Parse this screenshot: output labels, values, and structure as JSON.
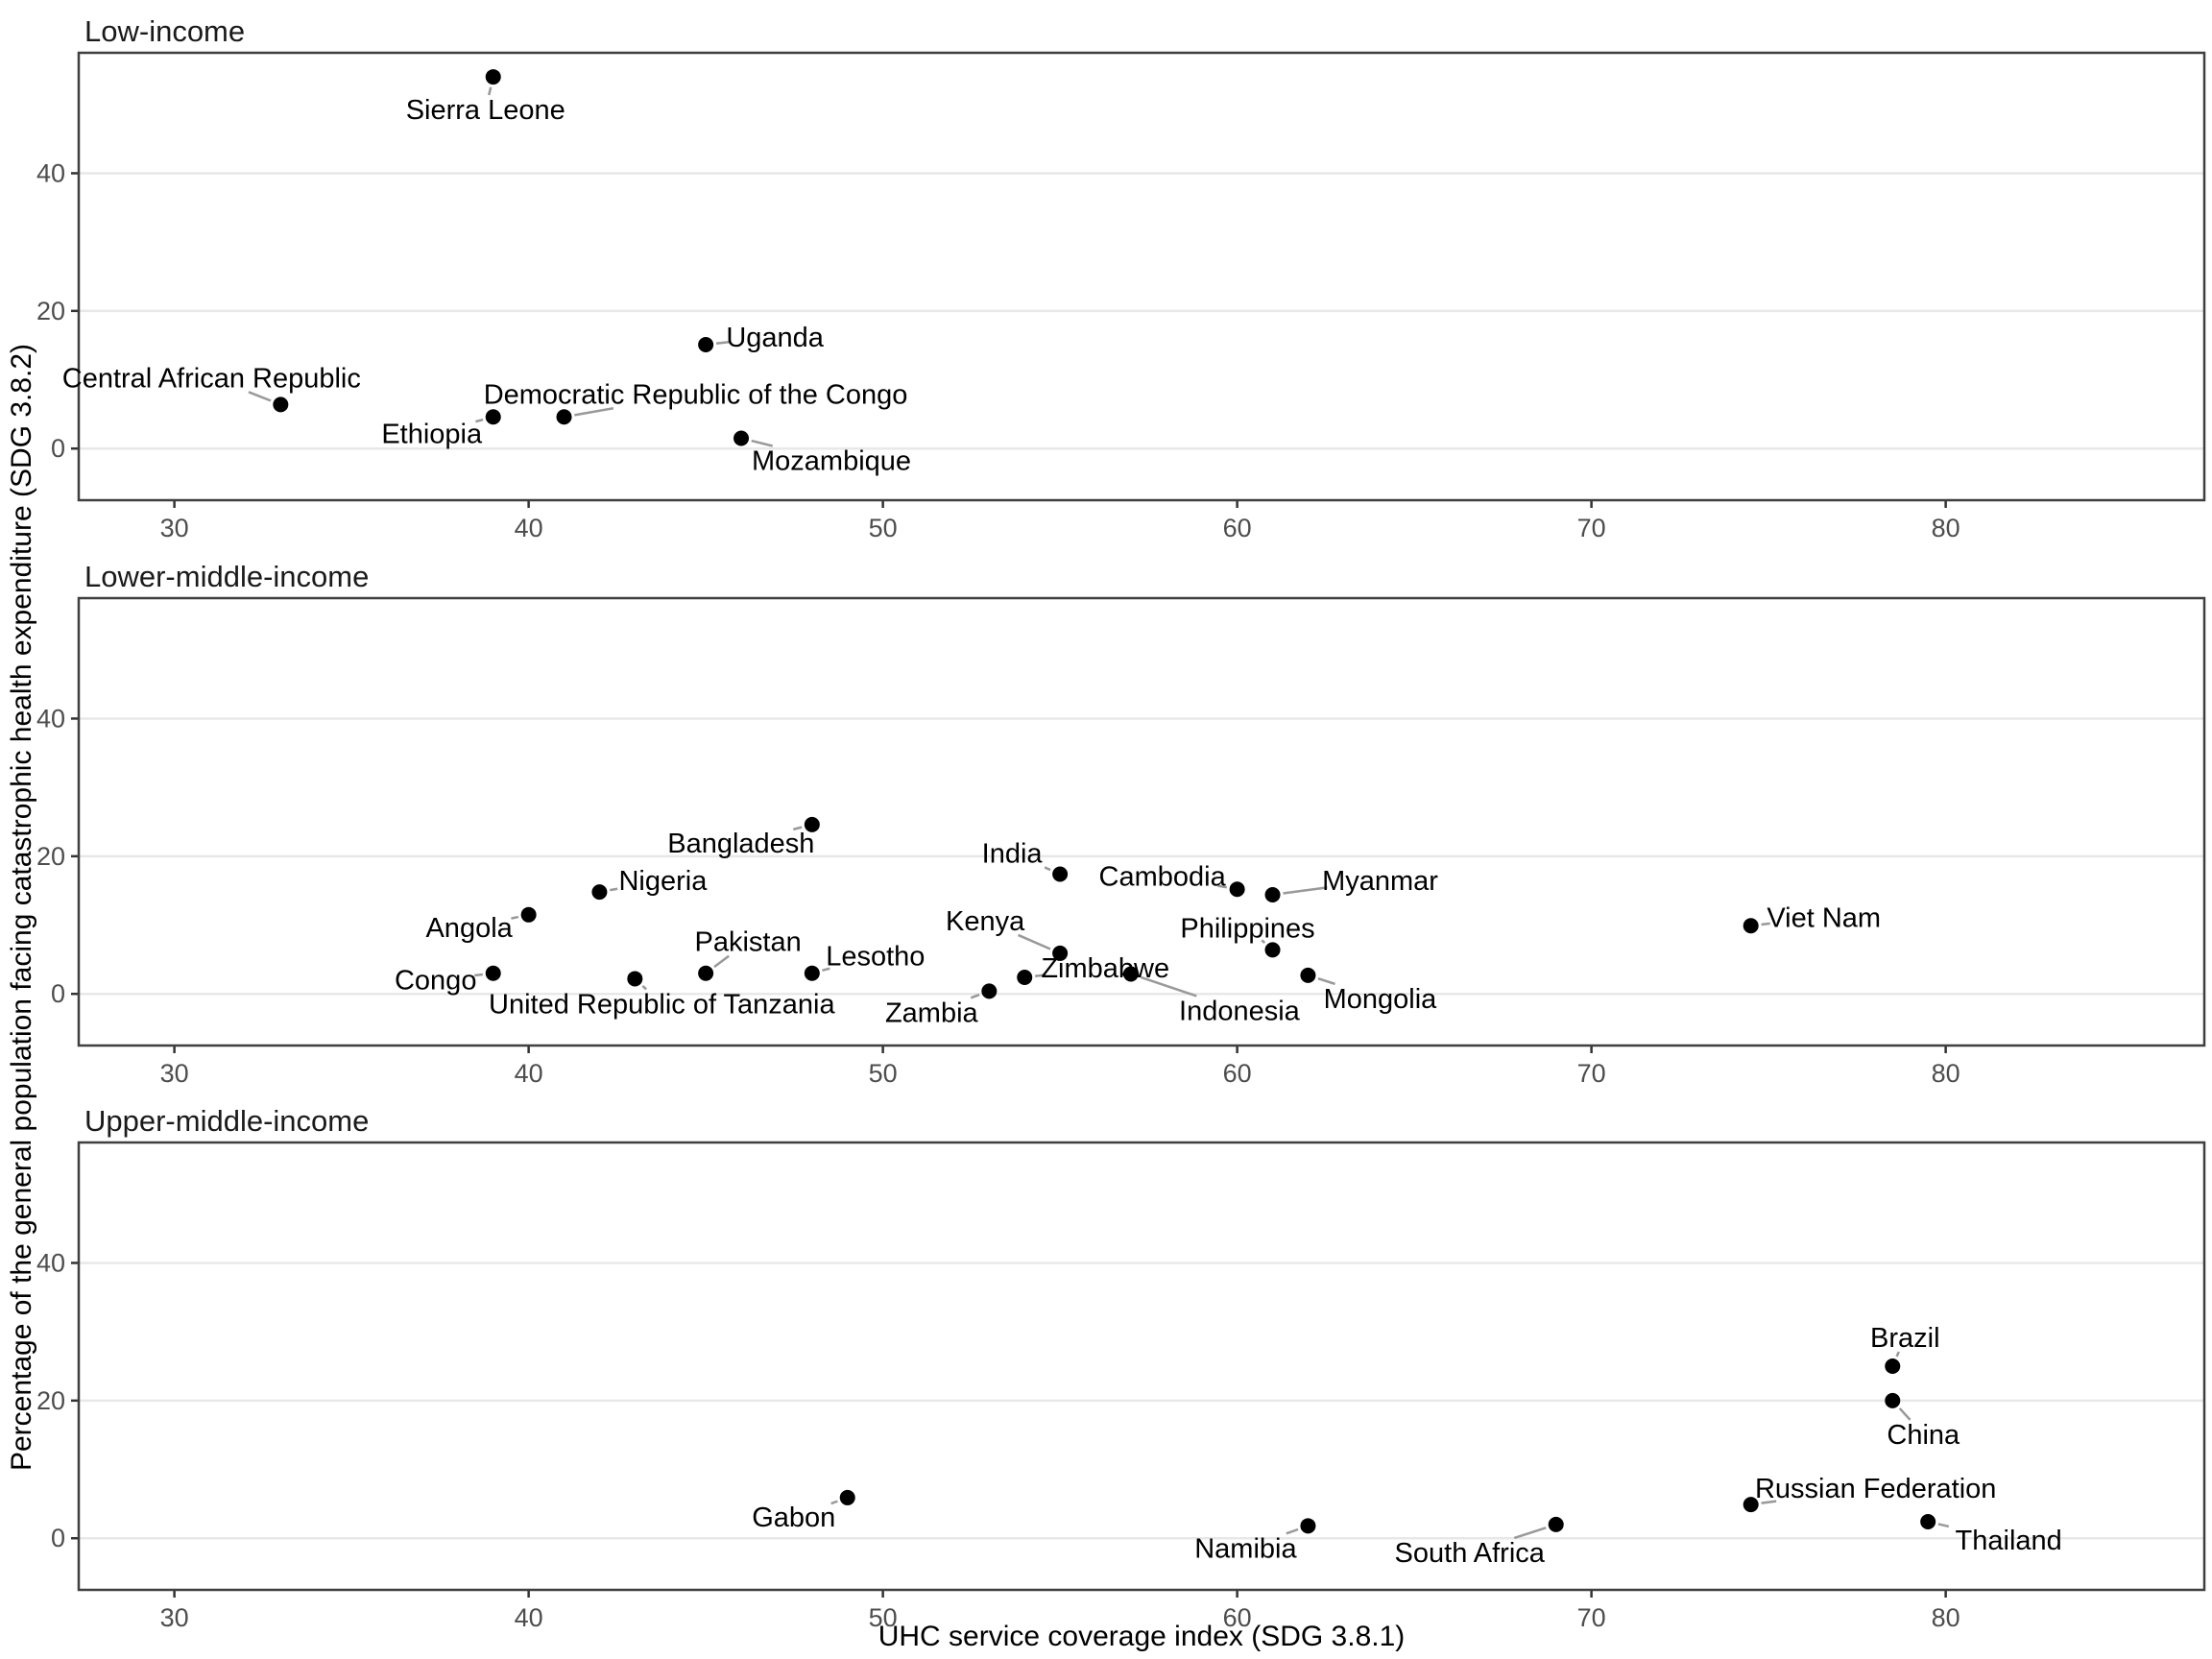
{
  "chart_data": {
    "type": "scatter",
    "title": "",
    "xlabel": "UHC service coverage index (SDG 3.8.1)",
    "ylabel": "Percentage of the general population facing catastrophic health expenditure (SDG 3.8.2)",
    "x_ticks": [
      30,
      40,
      50,
      60,
      70,
      80
    ],
    "y_ticks": [
      0,
      20,
      40
    ],
    "xlim": [
      27.3,
      87.3
    ],
    "ylim": [
      -7.5,
      57.5
    ],
    "grid": "horizontal-major-only",
    "legend": "none",
    "style": {
      "point_color": "#000000",
      "label_color": "#000000",
      "leader_color": "#999999",
      "grid_color": "#e8e8e8",
      "panel_border_color": "#3f3f3f",
      "tick_color": "#333333",
      "tick_label_color": "#4d4d4d",
      "background": "#ffffff"
    },
    "facets": [
      {
        "label": "Low-income",
        "points": [
          {
            "name": "Sierra Leone",
            "x": 39,
            "y": 54.0,
            "lx": -8,
            "ly": 34
          },
          {
            "name": "Uganda",
            "x": 45,
            "y": 15.1,
            "lx": 72,
            "ly": -8
          },
          {
            "name": "Central African Republic",
            "x": 33,
            "y": 6.4,
            "lx": -72,
            "ly": -28
          },
          {
            "name": "Ethiopia",
            "x": 39,
            "y": 4.6,
            "lx": -64,
            "ly": 17
          },
          {
            "name": "Democratic Republic of the Congo",
            "x": 41,
            "y": 4.6,
            "lx": 137,
            "ly": -24
          },
          {
            "name": "Mozambique",
            "x": 46,
            "y": 1.5,
            "lx": 94,
            "ly": 23
          }
        ]
      },
      {
        "label": "Lower-middle-income",
        "points": [
          {
            "name": "Bangladesh",
            "x": 48,
            "y": 24.6,
            "lx": -74,
            "ly": 19
          },
          {
            "name": "Nigeria",
            "x": 42,
            "y": 14.8,
            "lx": 66,
            "ly": -12
          },
          {
            "name": "Angola",
            "x": 40,
            "y": 11.5,
            "lx": -62,
            "ly": 13
          },
          {
            "name": "Congo",
            "x": 39,
            "y": 3.0,
            "lx": -60,
            "ly": 7
          },
          {
            "name": "United Republic of Tanzania",
            "x": 43,
            "y": 2.2,
            "lx": 28,
            "ly": 26
          },
          {
            "name": "Pakistan",
            "x": 45,
            "y": 3.0,
            "lx": 44,
            "ly": -33
          },
          {
            "name": "Lesotho",
            "x": 48,
            "y": 3.0,
            "lx": 66,
            "ly": -18
          },
          {
            "name": "Zambia",
            "x": 53,
            "y": 0.4,
            "lx": -60,
            "ly": 22
          },
          {
            "name": "Zimbabwe",
            "x": 54,
            "y": 2.4,
            "lx": 84,
            "ly": -10
          },
          {
            "name": "Kenya",
            "x": 55,
            "y": 5.9,
            "lx": -78,
            "ly": -34
          },
          {
            "name": "India",
            "x": 55,
            "y": 17.4,
            "lx": -50,
            "ly": -22
          },
          {
            "name": "Indonesia",
            "x": 57,
            "y": 2.9,
            "lx": 113,
            "ly": 38
          },
          {
            "name": "Cambodia",
            "x": 60,
            "y": 15.2,
            "lx": -78,
            "ly": -14
          },
          {
            "name": "Myanmar",
            "x": 61,
            "y": 14.4,
            "lx": 112,
            "ly": -15
          },
          {
            "name": "Philippines",
            "x": 61,
            "y": 6.4,
            "lx": -26,
            "ly": -23
          },
          {
            "name": "Mongolia",
            "x": 62,
            "y": 2.7,
            "lx": 75,
            "ly": 24
          },
          {
            "name": "Viet Nam",
            "x": 74.5,
            "y": 9.9,
            "lx": 76,
            "ly": -9
          }
        ]
      },
      {
        "label": "Upper-middle-income",
        "points": [
          {
            "name": "Gabon",
            "x": 49,
            "y": 5.9,
            "lx": -56,
            "ly": 20
          },
          {
            "name": "Namibia",
            "x": 62,
            "y": 1.8,
            "lx": -65,
            "ly": 23
          },
          {
            "name": "South Africa",
            "x": 69,
            "y": 2.0,
            "lx": -90,
            "ly": 29
          },
          {
            "name": "Russian Federation",
            "x": 74.5,
            "y": 4.9,
            "lx": 130,
            "ly": -17
          },
          {
            "name": "Brazil",
            "x": 78.5,
            "y": 25.0,
            "lx": 13,
            "ly": -30
          },
          {
            "name": "China",
            "x": 78.5,
            "y": 20.0,
            "lx": 32,
            "ly": 35
          },
          {
            "name": "Thailand",
            "x": 79.5,
            "y": 2.4,
            "lx": 84,
            "ly": 19
          }
        ]
      }
    ]
  }
}
